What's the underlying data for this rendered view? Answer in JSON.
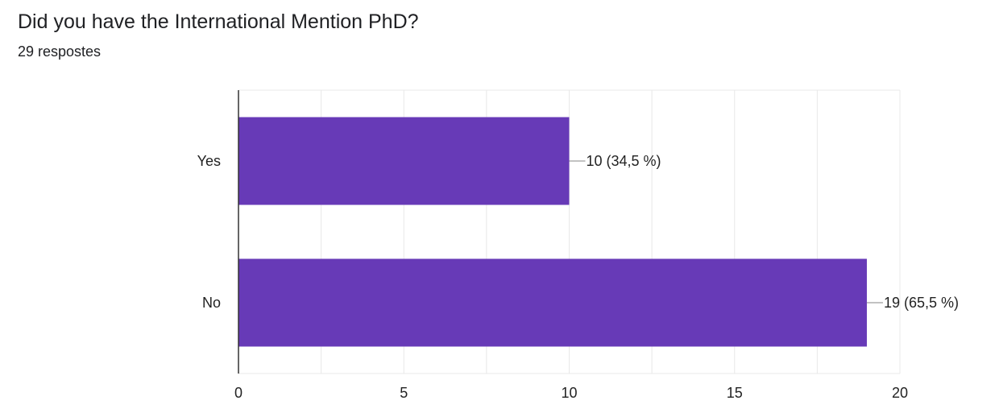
{
  "question": {
    "title": "Did you have the International Mention PhD?",
    "responses": "29 respostes"
  },
  "colors": {
    "bar": "#673ab7",
    "grid": "#e8e8e8",
    "axis": "#333333",
    "leader": "#9e9e9e"
  },
  "chart_data": {
    "type": "bar",
    "orientation": "horizontal",
    "categories": [
      "Yes",
      "No"
    ],
    "values": [
      10,
      19
    ],
    "data_labels": [
      "10 (34,5 %)",
      "19 (65,5 %)"
    ],
    "xlim": [
      0,
      20
    ],
    "xticks": [
      0,
      5,
      10,
      15,
      20
    ],
    "xtick_labels": [
      "0",
      "5",
      "10",
      "15",
      "20"
    ],
    "grid": true,
    "legend": "none"
  }
}
